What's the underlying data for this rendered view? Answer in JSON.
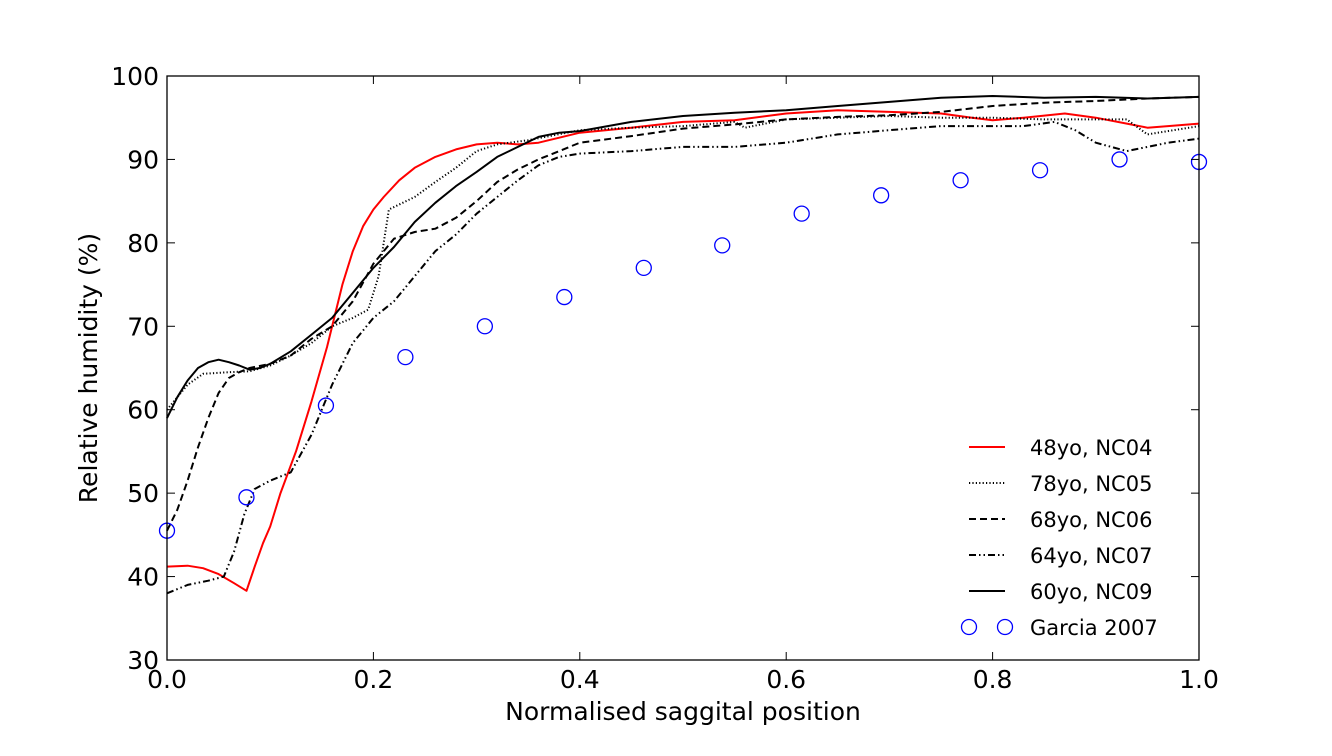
{
  "chart_data": {
    "type": "line",
    "title": "",
    "xlabel": "Normalised saggital position",
    "ylabel": "Relative humidity (%)",
    "xlim": [
      0.0,
      1.0
    ],
    "ylim": [
      30,
      100
    ],
    "xticks": [
      "0.0",
      "0.2",
      "0.4",
      "0.6",
      "0.8",
      "1.0"
    ],
    "yticks": [
      "30",
      "40",
      "50",
      "60",
      "70",
      "80",
      "90",
      "100"
    ],
    "grid": false,
    "legend_position": "lower-right",
    "series": [
      {
        "name": "48yo, NC04",
        "style": "solid",
        "color": "#ff0000",
        "x": [
          0.0,
          0.02,
          0.035,
          0.05,
          0.065,
          0.077,
          0.085,
          0.093,
          0.1,
          0.11,
          0.125,
          0.14,
          0.155,
          0.17,
          0.18,
          0.19,
          0.2,
          0.21,
          0.225,
          0.24,
          0.26,
          0.28,
          0.3,
          0.32,
          0.34,
          0.36,
          0.38,
          0.4,
          0.45,
          0.5,
          0.55,
          0.6,
          0.65,
          0.7,
          0.75,
          0.78,
          0.8,
          0.83,
          0.87,
          0.9,
          0.93,
          0.95,
          0.97,
          1.0
        ],
        "y": [
          41.2,
          41.3,
          41.0,
          40.3,
          39.2,
          38.3,
          41.2,
          44.0,
          46.0,
          50.0,
          55.0,
          61.0,
          67.5,
          75.0,
          79.0,
          82.0,
          84.0,
          85.5,
          87.5,
          89.0,
          90.3,
          91.2,
          91.8,
          92.0,
          91.8,
          92.0,
          92.6,
          93.2,
          93.8,
          94.5,
          94.7,
          95.5,
          95.9,
          95.7,
          95.5,
          95.0,
          94.7,
          95.0,
          95.5,
          95.0,
          94.3,
          93.8,
          94.0,
          94.3
        ]
      },
      {
        "name": "78yo, NC05",
        "style": "dotted",
        "color": "#000000",
        "x": [
          0.0,
          0.02,
          0.035,
          0.06,
          0.08,
          0.1,
          0.12,
          0.14,
          0.16,
          0.18,
          0.195,
          0.205,
          0.21,
          0.215,
          0.24,
          0.26,
          0.28,
          0.3,
          0.32,
          0.35,
          0.4,
          0.45,
          0.5,
          0.55,
          0.56,
          0.6,
          0.65,
          0.7,
          0.75,
          0.8,
          0.85,
          0.9,
          0.93,
          0.95,
          1.0
        ],
        "y": [
          60.0,
          63.0,
          64.3,
          64.5,
          64.6,
          65.3,
          66.5,
          68.0,
          70.0,
          71.0,
          72.0,
          76.0,
          80.0,
          84.0,
          85.5,
          87.3,
          89.0,
          91.0,
          91.8,
          92.3,
          93.5,
          93.8,
          94.0,
          94.5,
          93.8,
          94.8,
          95.0,
          95.2,
          95.0,
          95.0,
          94.8,
          94.8,
          94.8,
          93.0,
          94.0
        ]
      },
      {
        "name": "68yo, NC06",
        "style": "dashed",
        "color": "#000000",
        "x": [
          0.0,
          0.01,
          0.02,
          0.03,
          0.04,
          0.05,
          0.06,
          0.07,
          0.08,
          0.1,
          0.12,
          0.14,
          0.16,
          0.18,
          0.2,
          0.22,
          0.24,
          0.26,
          0.28,
          0.3,
          0.32,
          0.34,
          0.36,
          0.38,
          0.4,
          0.45,
          0.5,
          0.55,
          0.6,
          0.65,
          0.7,
          0.75,
          0.8,
          0.85,
          0.9,
          0.95,
          1.0
        ],
        "y": [
          45.5,
          48.0,
          51.5,
          55.5,
          59.0,
          62.0,
          63.8,
          64.5,
          65.0,
          65.5,
          66.5,
          68.5,
          70.0,
          73.0,
          77.5,
          80.5,
          81.3,
          81.7,
          83.0,
          85.0,
          87.3,
          88.8,
          90.0,
          91.0,
          92.0,
          92.8,
          93.7,
          94.2,
          94.8,
          95.1,
          95.3,
          95.7,
          96.4,
          96.8,
          97.0,
          97.3,
          97.5
        ]
      },
      {
        "name": "64yo, NC07",
        "style": "dashdot",
        "color": "#000000",
        "x": [
          0.0,
          0.02,
          0.04,
          0.055,
          0.065,
          0.075,
          0.085,
          0.1,
          0.12,
          0.14,
          0.16,
          0.18,
          0.2,
          0.22,
          0.24,
          0.26,
          0.28,
          0.3,
          0.32,
          0.34,
          0.36,
          0.38,
          0.4,
          0.45,
          0.5,
          0.55,
          0.6,
          0.65,
          0.7,
          0.75,
          0.8,
          0.83,
          0.86,
          0.88,
          0.9,
          0.93,
          0.97,
          1.0
        ],
        "y": [
          38.0,
          39.0,
          39.5,
          40.0,
          43.0,
          47.5,
          50.5,
          51.5,
          52.5,
          57.0,
          63.0,
          68.0,
          71.0,
          73.0,
          76.0,
          79.0,
          81.0,
          83.5,
          85.5,
          87.5,
          89.3,
          90.3,
          90.7,
          91.0,
          91.5,
          91.5,
          92.0,
          93.0,
          93.5,
          94.0,
          94.0,
          94.0,
          94.5,
          93.5,
          92.0,
          91.0,
          92.0,
          92.5
        ]
      },
      {
        "name": "60yo, NC09",
        "style": "solid",
        "color": "#000000",
        "x": [
          0.0,
          0.01,
          0.02,
          0.03,
          0.04,
          0.05,
          0.06,
          0.07,
          0.08,
          0.09,
          0.1,
          0.12,
          0.14,
          0.16,
          0.18,
          0.2,
          0.22,
          0.24,
          0.26,
          0.28,
          0.3,
          0.32,
          0.34,
          0.36,
          0.38,
          0.4,
          0.45,
          0.5,
          0.55,
          0.6,
          0.65,
          0.7,
          0.75,
          0.8,
          0.85,
          0.9,
          0.95,
          1.0
        ],
        "y": [
          59.0,
          61.5,
          63.5,
          65.0,
          65.7,
          66.0,
          65.7,
          65.3,
          64.8,
          65.0,
          65.5,
          67.0,
          69.0,
          71.0,
          74.0,
          77.0,
          79.5,
          82.5,
          84.8,
          86.8,
          88.5,
          90.3,
          91.5,
          92.7,
          93.2,
          93.4,
          94.5,
          95.2,
          95.6,
          95.9,
          96.4,
          96.9,
          97.4,
          97.6,
          97.4,
          97.5,
          97.3,
          97.5
        ]
      },
      {
        "name": "Garcia 2007",
        "style": "markers",
        "color": "#0000ff",
        "x": [
          0.0,
          0.077,
          0.154,
          0.231,
          0.308,
          0.385,
          0.462,
          0.538,
          0.615,
          0.692,
          0.769,
          0.846,
          0.923,
          1.0
        ],
        "y": [
          45.5,
          49.5,
          60.5,
          66.3,
          70.0,
          73.5,
          77.0,
          79.7,
          83.5,
          85.7,
          87.5,
          88.7,
          90.0,
          89.7
        ]
      }
    ]
  }
}
